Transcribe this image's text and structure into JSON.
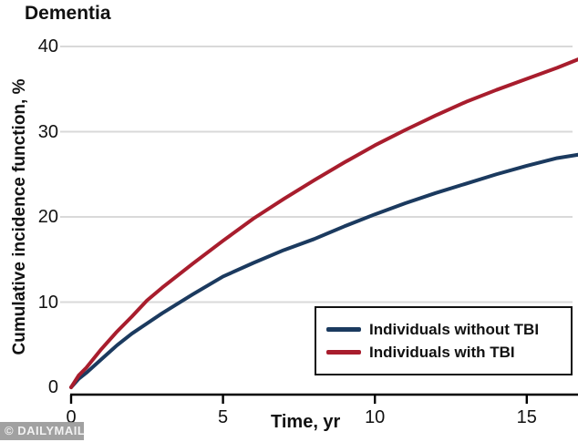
{
  "title": "Dementia",
  "watermark": "© DAILYMAIL",
  "colors": {
    "without_tbi": "#1b3a5f",
    "with_tbi": "#a81d2d",
    "gridline": "#d9d9d9",
    "axis": "#000000",
    "text": "#111111",
    "watermark_bg": "#919191"
  },
  "chart_data": {
    "type": "line",
    "title": "Dementia",
    "xlabel": "Time, yr",
    "ylabel": "Cumulative incidence function, %",
    "xlim": [
      0,
      16.7
    ],
    "ylim": [
      0,
      40
    ],
    "x_ticks": [
      0,
      5,
      10,
      15
    ],
    "y_ticks": [
      0,
      10,
      20,
      30,
      40
    ],
    "grid": "horizontal-light-gray",
    "legend_position": "bottom-right",
    "x": [
      0,
      0.25,
      0.5,
      1,
      1.5,
      2,
      2.5,
      3,
      4,
      5,
      6,
      7,
      8,
      9,
      10,
      11,
      12,
      13,
      14,
      15,
      16,
      16.7
    ],
    "series": [
      {
        "name": "Individuals without TBI",
        "color": "#1b3a5f",
        "values": [
          0,
          1.0,
          1.7,
          3.3,
          4.9,
          6.3,
          7.5,
          8.7,
          10.9,
          13.0,
          14.6,
          16.1,
          17.4,
          18.9,
          20.3,
          21.6,
          22.8,
          23.9,
          25.0,
          26.0,
          26.9,
          27.3
        ]
      },
      {
        "name": "Individuals with TBI",
        "color": "#a81d2d",
        "values": [
          0,
          1.4,
          2.3,
          4.5,
          6.5,
          8.3,
          10.2,
          11.7,
          14.5,
          17.2,
          19.8,
          22.1,
          24.3,
          26.4,
          28.4,
          30.2,
          31.9,
          33.5,
          34.9,
          36.2,
          37.5,
          38.5
        ]
      }
    ]
  }
}
